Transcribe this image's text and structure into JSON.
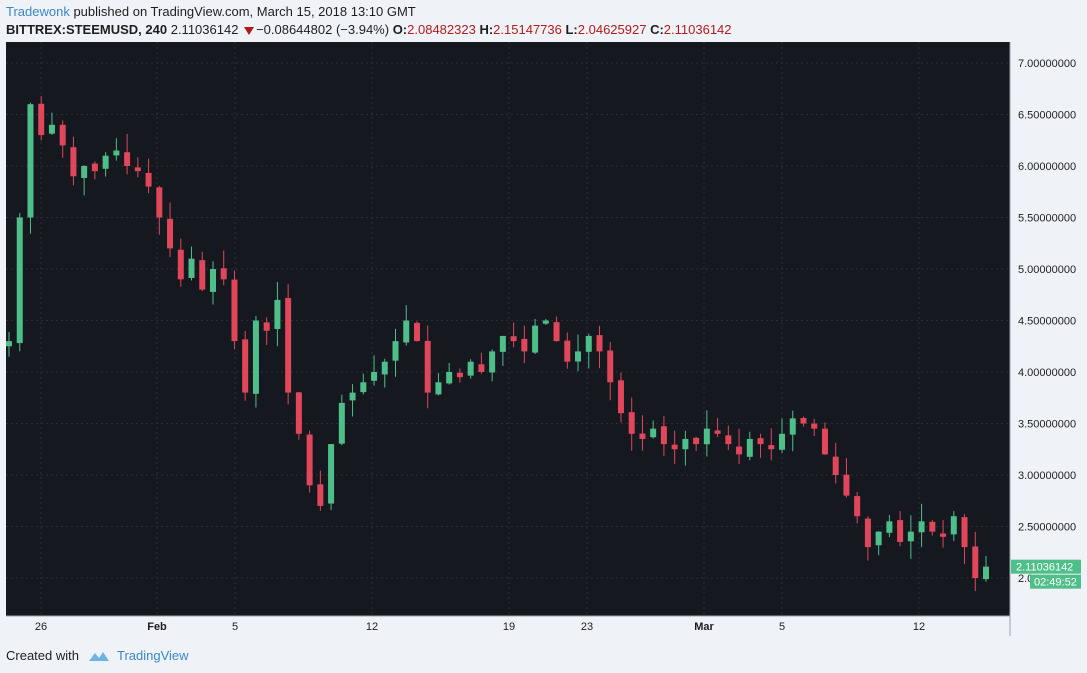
{
  "header": {
    "author": "Tradewonk",
    "published_text": "published on TradingView.com, March 15, 2018 13:10 GMT",
    "symbol": "BITTREX:STEEMUSD, 240",
    "last_price": "2.11036142",
    "change": "−0.08644802 (−3.94%)",
    "open_label": "O:",
    "open": "2.08482323",
    "high_label": "H:",
    "high": "2.15147736",
    "low_label": "L:",
    "low": "2.04625927",
    "close_label": "C:",
    "close": "2.11036142"
  },
  "price_tag": {
    "price": "2.11036142",
    "countdown": "02:49:52"
  },
  "footer": {
    "created_with": "Created with",
    "brand": "TradingView"
  },
  "colors": {
    "background": "#15181f",
    "grid": "#2a2e38",
    "up": "#4fbf8a",
    "down": "#e0475a",
    "axis_text": "#1e1e1e",
    "tag": "#4fbf8a"
  },
  "chart_data": {
    "type": "candlestick",
    "interval": "240",
    "y_axis_labels": [
      "7.00000000",
      "6.50000000",
      "6.00000000",
      "5.50000000",
      "5.00000000",
      "4.50000000",
      "4.00000000",
      "3.50000000",
      "3.00000000",
      "2.50000000",
      "2.0"
    ],
    "ylim": [
      1.6,
      7.4
    ],
    "x_tick_labels": [
      "26",
      "Feb",
      "5",
      "12",
      "19",
      "23",
      "Mar",
      "5",
      "12"
    ],
    "grid": true,
    "series_close": [
      4.3,
      5.5,
      6.6,
      6.3,
      6.4,
      6.2,
      5.9,
      6.0,
      5.95,
      6.1,
      6.15,
      6.0,
      5.95,
      5.8,
      5.5,
      5.2,
      4.9,
      5.1,
      4.8,
      5.0,
      4.9,
      4.3,
      3.8,
      4.5,
      4.4,
      4.7,
      3.8,
      3.4,
      2.9,
      2.7,
      3.3,
      3.7,
      3.8,
      3.9,
      4.0,
      4.1,
      4.3,
      4.5,
      4.3,
      3.8,
      3.9,
      4.0,
      3.95,
      4.1,
      4.0,
      4.2,
      4.35,
      4.3,
      4.2,
      4.45,
      4.5,
      4.3,
      4.1,
      4.2,
      4.35,
      4.2,
      3.9,
      3.6,
      3.4,
      3.35,
      3.45,
      3.3,
      3.25,
      3.35,
      3.3,
      3.45,
      3.4,
      3.3,
      3.2,
      3.35,
      3.3,
      3.25,
      3.4,
      3.55,
      3.5,
      3.45,
      3.2,
      3.0,
      2.8,
      2.6,
      2.3,
      2.45,
      2.55,
      2.35,
      2.45,
      2.55,
      2.45,
      2.4,
      2.6,
      2.3,
      2.0,
      2.11
    ]
  }
}
